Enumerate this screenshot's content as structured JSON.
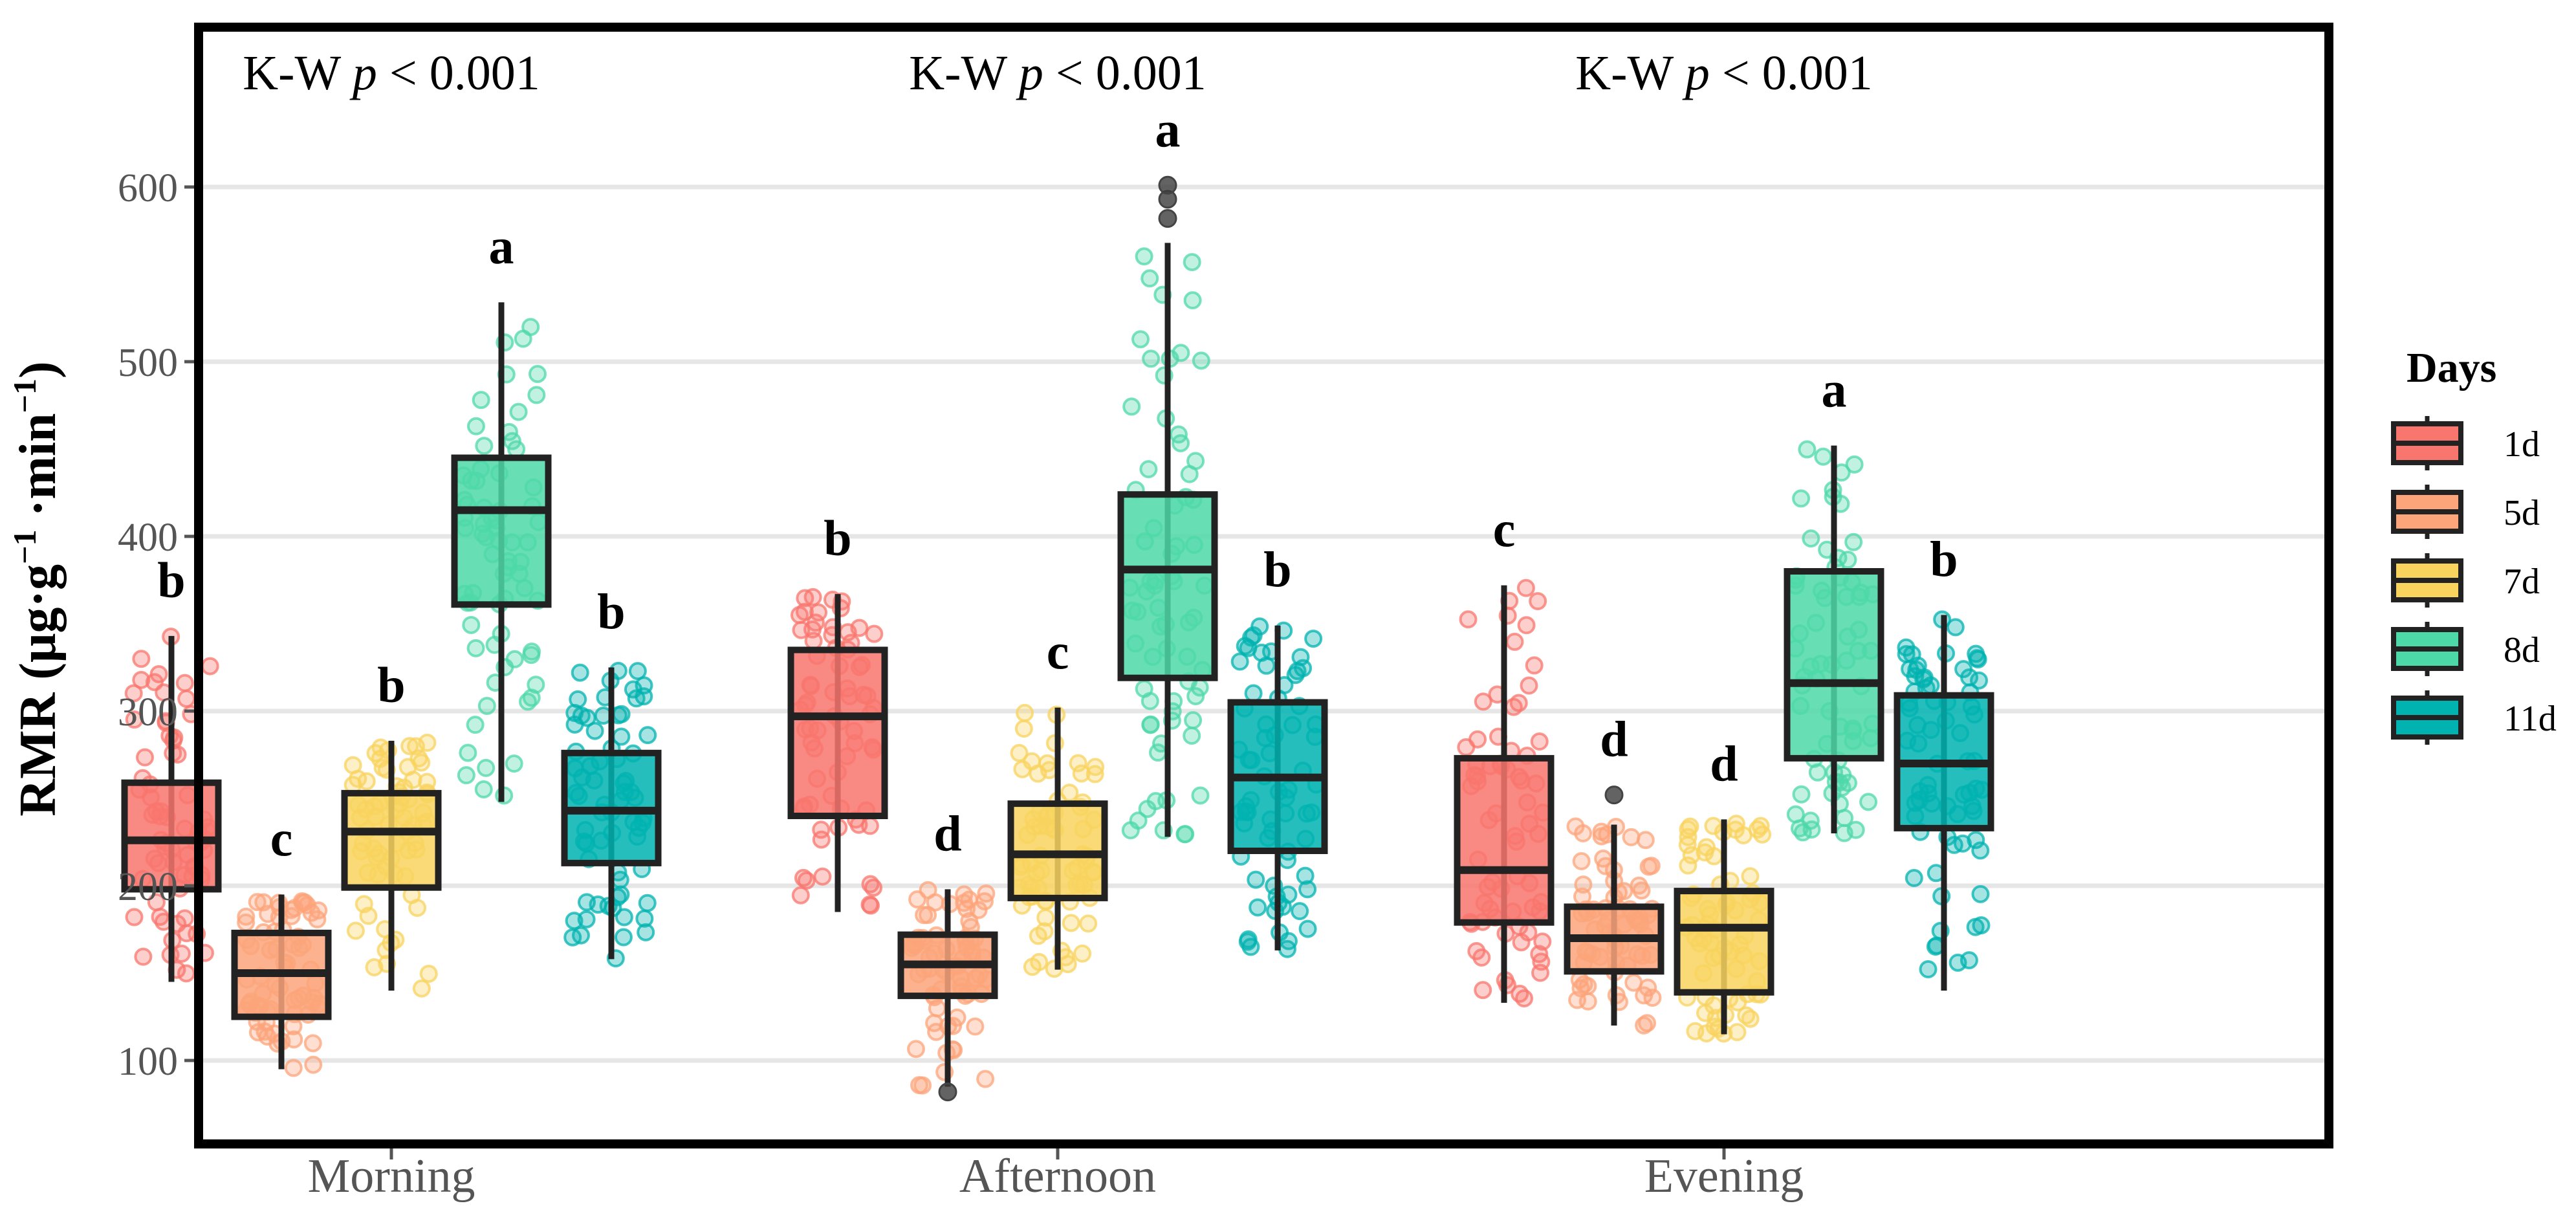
{
  "chart_data": {
    "type": "box",
    "ylabel_main": "RMR (μg·g",
    "ylabel_sup1": "−1",
    "ylabel_mid": " ·min",
    "ylabel_sup2": "−1",
    "ylabel_end": ")",
    "ylim": [
      80,
      660
    ],
    "yticks": [
      100,
      200,
      300,
      400,
      500,
      600
    ],
    "grid": "horizontal",
    "legend_position": "right",
    "legend_title": "Days",
    "categories": [
      "Morning",
      "Afternoon",
      "Evening"
    ],
    "series": [
      {
        "name": "1d",
        "color": "#F8766D"
      },
      {
        "name": "5d",
        "color": "#FCA47A"
      },
      {
        "name": "7d",
        "color": "#F8D35E"
      },
      {
        "name": "8d",
        "color": "#4DD8A8"
      },
      {
        "name": "11d",
        "color": "#00B3B0"
      }
    ],
    "test_labels": [
      "K-W p < 0.001",
      "K-W p < 0.001",
      "K-W p < 0.001"
    ],
    "test_prefix": "K-W ",
    "test_p": "p",
    "test_suffix": " < 0.001",
    "groups": [
      {
        "category": "Morning",
        "boxes": [
          {
            "series": "1d",
            "min": 145,
            "q1": 198,
            "median": 226,
            "q3": 259,
            "max": 343,
            "letter": "b",
            "outliers": []
          },
          {
            "series": "5d",
            "min": 95,
            "q1": 125,
            "median": 150,
            "q3": 173,
            "max": 195,
            "letter": "c",
            "outliers": []
          },
          {
            "series": "7d",
            "min": 140,
            "q1": 199,
            "median": 231,
            "q3": 253,
            "max": 283,
            "letter": "b",
            "outliers": []
          },
          {
            "series": "8d",
            "min": 248,
            "q1": 361,
            "median": 415,
            "q3": 445,
            "max": 534,
            "letter": "a",
            "outliers": []
          },
          {
            "series": "11d",
            "min": 158,
            "q1": 213,
            "median": 243,
            "q3": 276,
            "max": 325,
            "letter": "b",
            "outliers": []
          }
        ]
      },
      {
        "category": "Afternoon",
        "boxes": [
          {
            "series": "1d",
            "min": 185,
            "q1": 240,
            "median": 297,
            "q3": 335,
            "max": 367,
            "letter": "b",
            "outliers": []
          },
          {
            "series": "5d",
            "min": 85,
            "q1": 137,
            "median": 155,
            "q3": 172,
            "max": 198,
            "letter": "d",
            "outliers": [
              82
            ]
          },
          {
            "series": "7d",
            "min": 152,
            "q1": 193,
            "median": 218,
            "q3": 247,
            "max": 302,
            "letter": "c",
            "outliers": []
          },
          {
            "series": "8d",
            "min": 228,
            "q1": 319,
            "median": 381,
            "q3": 424,
            "max": 568,
            "letter": "a",
            "outliers": [
              582,
              593,
              601
            ]
          },
          {
            "series": "11d",
            "min": 163,
            "q1": 220,
            "median": 262,
            "q3": 305,
            "max": 349,
            "letter": "b",
            "outliers": []
          }
        ]
      },
      {
        "category": "Evening",
        "boxes": [
          {
            "series": "1d",
            "min": 133,
            "q1": 179,
            "median": 209,
            "q3": 273,
            "max": 372,
            "letter": "c",
            "outliers": []
          },
          {
            "series": "5d",
            "min": 120,
            "q1": 151,
            "median": 170,
            "q3": 188,
            "max": 235,
            "letter": "d",
            "outliers": [
              252
            ]
          },
          {
            "series": "7d",
            "min": 115,
            "q1": 139,
            "median": 176,
            "q3": 197,
            "max": 238,
            "letter": "d",
            "outliers": []
          },
          {
            "series": "8d",
            "min": 230,
            "q1": 273,
            "median": 316,
            "q3": 380,
            "max": 452,
            "letter": "a",
            "outliers": []
          },
          {
            "series": "11d",
            "min": 140,
            "q1": 233,
            "median": 270,
            "q3": 309,
            "max": 355,
            "letter": "b",
            "outliers": []
          }
        ]
      }
    ]
  }
}
